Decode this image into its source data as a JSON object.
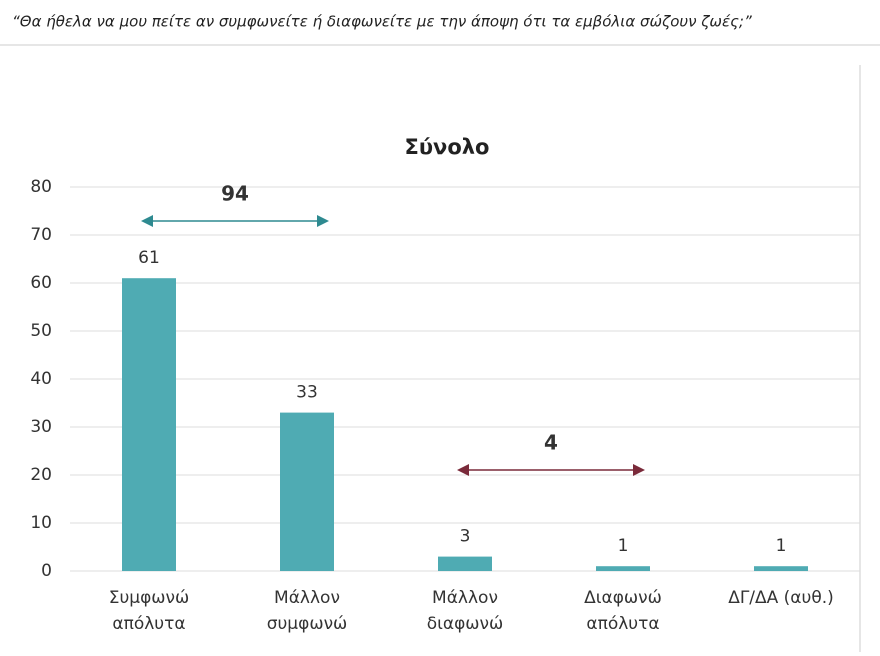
{
  "question": "“Θα ήθελα να μου πείτε αν συμφωνείτε ή διαφωνείτε με την άποψη ότι τα εμβόλια σώζουν ζωές;”",
  "chart_data": {
    "type": "bar",
    "title": "Σύνολο",
    "categories": [
      "Συμφωνώ\nαπόλυτα",
      "Μάλλον\nσυμφωνώ",
      "Μάλλον\nδιαφωνώ",
      "Διαφωνώ\nαπόλυτα",
      "ΔΓ/ΔΑ (αυθ.)"
    ],
    "values": [
      61,
      33,
      3,
      1,
      1
    ],
    "color": "#4fabb3",
    "ylim": [
      0,
      80
    ],
    "yticks": [
      0,
      10,
      20,
      30,
      40,
      50,
      60,
      70,
      80
    ],
    "grid": true,
    "annotations": [
      {
        "text": "94",
        "color": "#2e8a90"
      },
      {
        "text": "4",
        "color": "#7a2a3a"
      }
    ]
  }
}
